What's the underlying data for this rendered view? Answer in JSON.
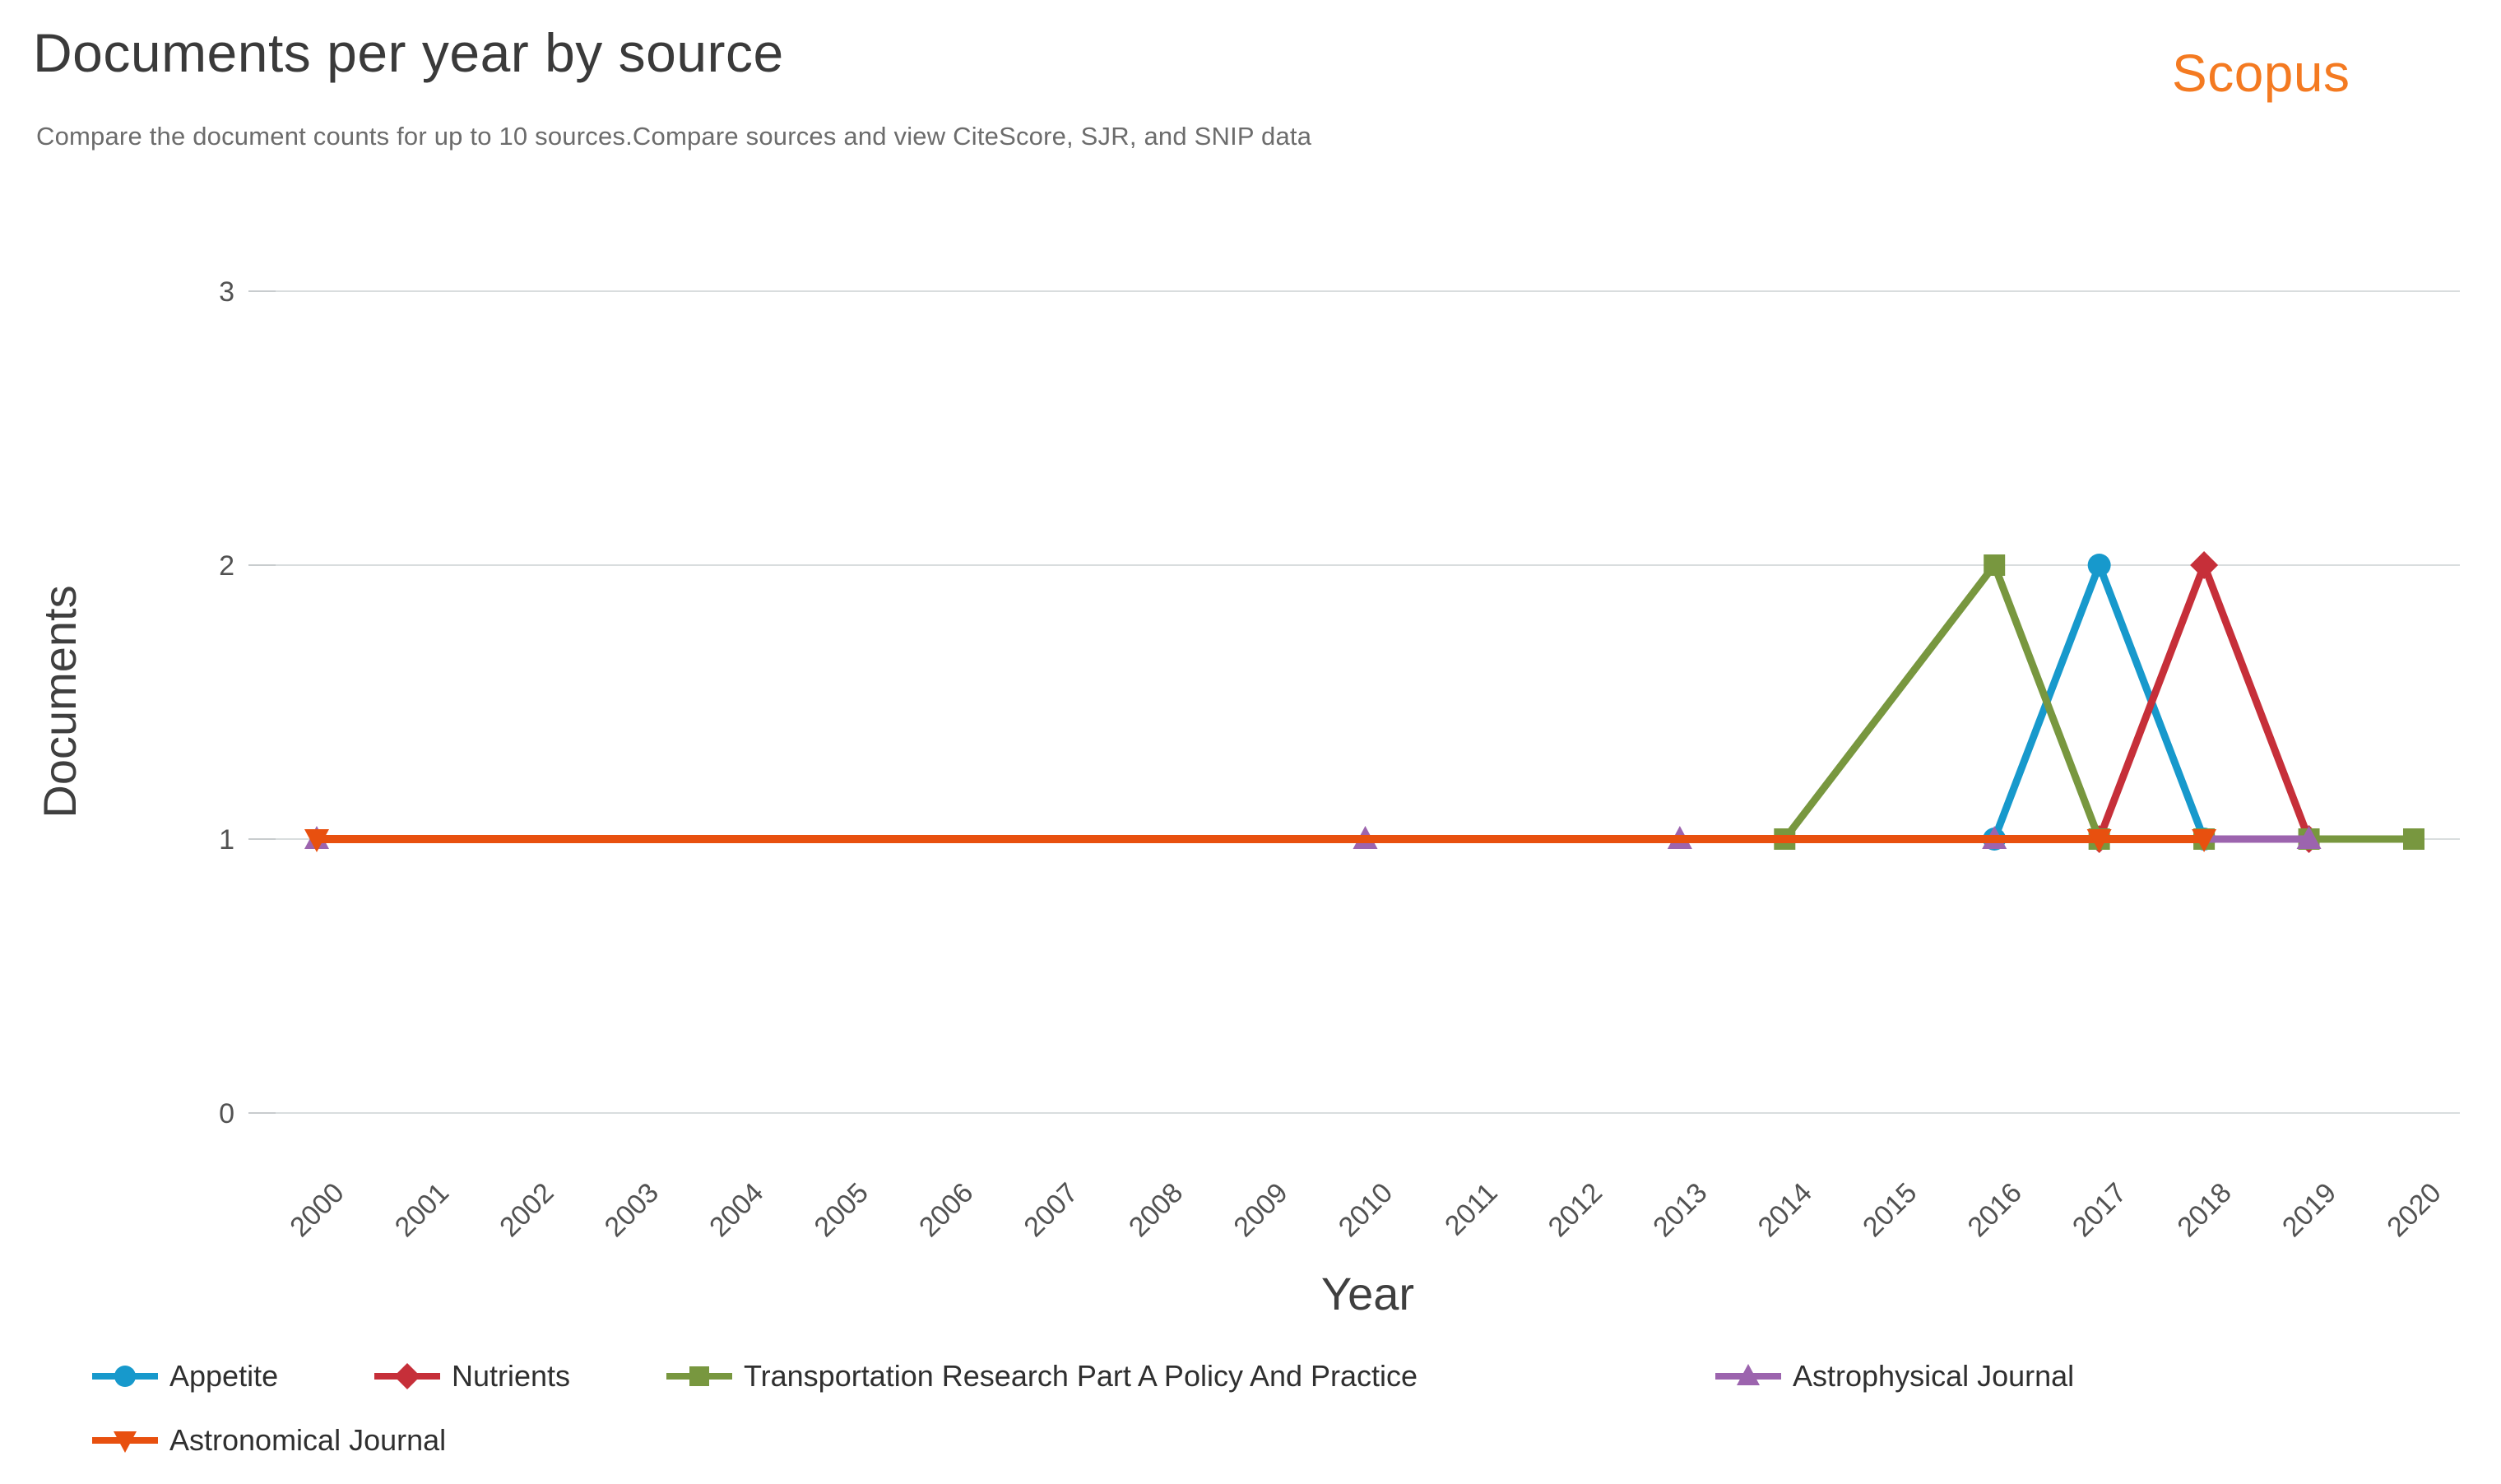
{
  "header": {
    "title": "Documents per year by source",
    "subtitle": "Compare the document counts for up to 10 sources.Compare sources and view CiteScore, SJR, and SNIP data",
    "brand": "Scopus",
    "brand_color": "#F47A21"
  },
  "chart_data": {
    "type": "line",
    "title": "Documents per year by source",
    "xlabel": "Year",
    "ylabel": "Documents",
    "x_categories": [
      2000,
      2001,
      2002,
      2003,
      2004,
      2005,
      2006,
      2007,
      2008,
      2009,
      2010,
      2011,
      2012,
      2013,
      2014,
      2015,
      2016,
      2017,
      2018,
      2019,
      2020
    ],
    "yticks": [
      0,
      1,
      2,
      3
    ],
    "ylim": [
      0,
      3
    ],
    "grid": "horizontal",
    "gridline_color": "#D9DDDE",
    "tick_color": "#C8CCCE",
    "tick_label_color": "#525252",
    "axis_title_color": "#3f3f3f",
    "legend_position": "bottom-left",
    "series": [
      {
        "name": "Appetite",
        "color": "#1799CC",
        "marker": "circle",
        "points": [
          [
            2016,
            1
          ],
          [
            2017,
            2
          ],
          [
            2018,
            1
          ]
        ]
      },
      {
        "name": "Nutrients",
        "color": "#C62F39",
        "marker": "diamond",
        "points": [
          [
            2017,
            1
          ],
          [
            2018,
            2
          ],
          [
            2019,
            1
          ]
        ]
      },
      {
        "name": "Transportation Research Part A Policy And Practice",
        "color": "#78973F",
        "marker": "square",
        "points": [
          [
            2014,
            1
          ],
          [
            2016,
            2
          ],
          [
            2017,
            1
          ],
          [
            2018,
            1
          ],
          [
            2019,
            1
          ],
          [
            2020,
            1
          ]
        ]
      },
      {
        "name": "Astrophysical Journal",
        "color": "#9C64AE",
        "marker": "triangle-up",
        "points": [
          [
            2000,
            1
          ],
          [
            2010,
            1
          ],
          [
            2013,
            1
          ],
          [
            2016,
            1
          ],
          [
            2019,
            1
          ]
        ]
      },
      {
        "name": "Astronomical Journal",
        "color": "#E8500F",
        "marker": "triangle-down",
        "points": [
          [
            2000,
            1
          ],
          [
            2017,
            1
          ],
          [
            2018,
            1
          ]
        ]
      }
    ]
  }
}
